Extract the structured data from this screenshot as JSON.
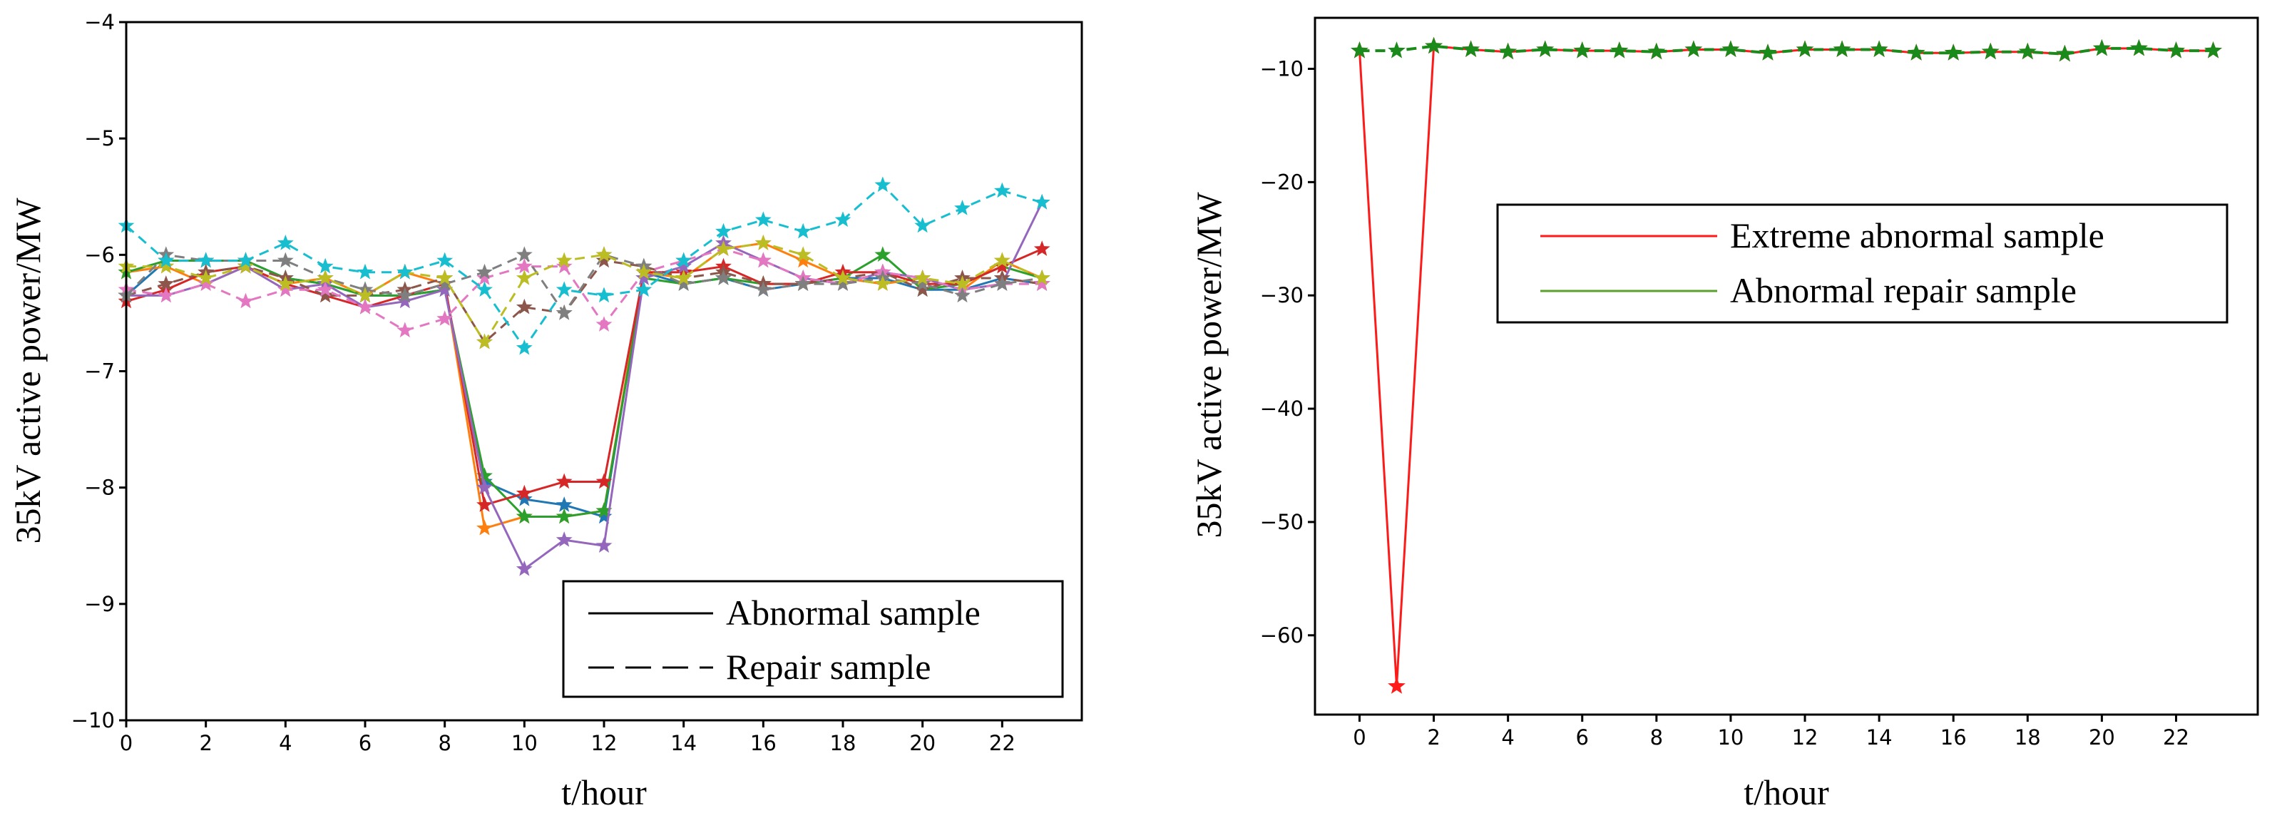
{
  "chart_data": [
    {
      "type": "line",
      "xlabel": "t/hour",
      "ylabel": "35kV active power/MW",
      "xlim": [
        0,
        24
      ],
      "ylim": [
        -10,
        -4
      ],
      "xticks": [
        "0",
        "2",
        "4",
        "6",
        "8",
        "10",
        "12",
        "14",
        "16",
        "18",
        "20",
        "22"
      ],
      "yticks": [
        "−4",
        "−5",
        "−6",
        "−7",
        "−8",
        "−9",
        "−10"
      ],
      "legend": {
        "position": "bottom-right",
        "entries": [
          {
            "label": "Abnormal sample",
            "style": "solid"
          },
          {
            "label": "Repair sample",
            "style": "dashed"
          }
        ]
      },
      "x": [
        0,
        1,
        2,
        3,
        4,
        5,
        6,
        7,
        8,
        9,
        10,
        11,
        12,
        13,
        14,
        15,
        16,
        17,
        18,
        19,
        20,
        21,
        22,
        23
      ],
      "series": [
        {
          "name": "blue",
          "color": "#1f77b4",
          "style": "solid",
          "values": [
            -6.35,
            -6.05,
            -6.05,
            -6.05,
            -6.2,
            -6.25,
            -6.35,
            -6.35,
            -6.3,
            -7.95,
            -8.1,
            -8.15,
            -8.25,
            -6.15,
            -6.25,
            -6.2,
            -6.3,
            -6.25,
            -6.2,
            -6.2,
            -6.3,
            -6.3,
            -6.2,
            -6.25
          ]
        },
        {
          "name": "orange",
          "color": "#ff7f0e",
          "style": "solid",
          "values": [
            -6.15,
            -6.1,
            -6.25,
            -6.1,
            -6.25,
            -6.2,
            -6.35,
            -6.15,
            -6.25,
            -8.35,
            -8.25,
            -8.25,
            -8.2,
            -6.15,
            -6.2,
            -5.95,
            -5.9,
            -6.05,
            -6.2,
            -6.25,
            -6.2,
            -6.3,
            -6.05,
            -6.2
          ]
        },
        {
          "name": "green",
          "color": "#2ca02c",
          "style": "solid",
          "values": [
            -6.15,
            -6.05,
            -6.05,
            -6.05,
            -6.2,
            -6.25,
            -6.35,
            -6.35,
            -6.3,
            -7.9,
            -8.25,
            -8.25,
            -8.2,
            -6.2,
            -6.25,
            -6.2,
            -6.25,
            -6.25,
            -6.2,
            -6.0,
            -6.3,
            -6.25,
            -6.1,
            -6.2
          ]
        },
        {
          "name": "red",
          "color": "#d62728",
          "style": "solid",
          "values": [
            -6.4,
            -6.3,
            -6.15,
            -6.1,
            -6.25,
            -6.35,
            -6.45,
            -6.35,
            -6.25,
            -8.15,
            -8.05,
            -7.95,
            -7.95,
            -6.15,
            -6.15,
            -6.1,
            -6.25,
            -6.25,
            -6.15,
            -6.15,
            -6.25,
            -6.25,
            -6.1,
            -5.95
          ]
        },
        {
          "name": "purple",
          "color": "#9467bd",
          "style": "solid",
          "values": [
            -6.35,
            -6.35,
            -6.25,
            -6.1,
            -6.3,
            -6.25,
            -6.45,
            -6.4,
            -6.3,
            -8.0,
            -8.7,
            -8.45,
            -8.5,
            -6.2,
            -6.1,
            -5.9,
            -6.05,
            -6.2,
            -6.25,
            -6.15,
            -6.2,
            -6.3,
            -6.25,
            -5.55
          ]
        },
        {
          "name": "brown",
          "color": "#8c564b",
          "style": "dashed",
          "values": [
            -6.35,
            -6.25,
            -6.15,
            -6.1,
            -6.2,
            -6.35,
            -6.35,
            -6.3,
            -6.2,
            -6.75,
            -6.45,
            -6.5,
            -6.05,
            -6.1,
            -6.2,
            -6.15,
            -6.25,
            -6.25,
            -6.2,
            -6.15,
            -6.3,
            -6.2,
            -6.2,
            -6.25
          ]
        },
        {
          "name": "pink",
          "color": "#e377c2",
          "style": "dashed",
          "values": [
            -6.3,
            -6.35,
            -6.25,
            -6.4,
            -6.3,
            -6.3,
            -6.45,
            -6.65,
            -6.55,
            -6.2,
            -6.1,
            -6.1,
            -6.6,
            -6.15,
            -6.05,
            -5.95,
            -6.05,
            -6.2,
            -6.25,
            -6.15,
            -6.2,
            -6.3,
            -6.25,
            -6.25
          ]
        },
        {
          "name": "gray",
          "color": "#7f7f7f",
          "style": "dashed",
          "values": [
            -6.35,
            -6.0,
            -6.05,
            -6.05,
            -6.05,
            -6.2,
            -6.3,
            -6.35,
            -6.25,
            -6.15,
            -6.0,
            -6.5,
            -6.0,
            -6.1,
            -6.25,
            -6.2,
            -6.3,
            -6.25,
            -6.25,
            -6.2,
            -6.25,
            -6.35,
            -6.25,
            -6.2
          ]
        },
        {
          "name": "olive",
          "color": "#bcbd22",
          "style": "dashed",
          "values": [
            -6.1,
            -6.1,
            -6.2,
            -6.1,
            -6.25,
            -6.2,
            -6.35,
            -6.15,
            -6.2,
            -6.75,
            -6.2,
            -6.05,
            -6.0,
            -6.15,
            -6.2,
            -5.95,
            -5.9,
            -6.0,
            -6.2,
            -6.25,
            -6.2,
            -6.25,
            -6.05,
            -6.2
          ]
        },
        {
          "name": "cyan",
          "color": "#17becf",
          "style": "dashed",
          "values": [
            -5.75,
            -6.05,
            -6.05,
            -6.05,
            -5.9,
            -6.1,
            -6.15,
            -6.15,
            -6.05,
            -6.3,
            -6.8,
            -6.3,
            -6.35,
            -6.3,
            -6.05,
            -5.8,
            -5.7,
            -5.8,
            -5.7,
            -5.4,
            -5.75,
            -5.6,
            -5.45,
            -5.55
          ]
        }
      ]
    },
    {
      "type": "line",
      "xlabel": "t/hour",
      "ylabel": "35kV active power/MW",
      "xlim": [
        -1.2,
        24.2
      ],
      "ylim": [
        -67,
        -5.5
      ],
      "xticks": [
        "0",
        "2",
        "4",
        "6",
        "8",
        "10",
        "12",
        "14",
        "16",
        "18",
        "20",
        "22"
      ],
      "yticks": [
        "−10",
        "−20",
        "−30",
        "−40",
        "−50",
        "−60"
      ],
      "legend": {
        "position": "upper-right",
        "entries": [
          {
            "label": "Extreme abnormal sample",
            "color": "#ff1a1a"
          },
          {
            "label": "Abnormal repair sample",
            "color": "#5aa02c"
          }
        ]
      },
      "x": [
        0,
        1,
        2,
        3,
        4,
        5,
        6,
        7,
        8,
        9,
        10,
        11,
        12,
        13,
        14,
        15,
        16,
        17,
        18,
        19,
        20,
        21,
        22,
        23
      ],
      "series": [
        {
          "name": "Extreme abnormal sample",
          "color": "#ff1a1a",
          "values": [
            -8.4,
            -64.5,
            -8.0,
            -8.3,
            -8.5,
            -8.3,
            -8.4,
            -8.4,
            -8.5,
            -8.3,
            -8.3,
            -8.6,
            -8.3,
            -8.3,
            -8.3,
            -8.6,
            -8.6,
            -8.5,
            -8.5,
            -8.7,
            -8.2,
            -8.2,
            -8.4,
            -8.4
          ]
        },
        {
          "name": "Abnormal repair sample",
          "color": "#1a8a1a",
          "values": [
            -8.4,
            -8.4,
            -8.0,
            -8.3,
            -8.5,
            -8.3,
            -8.4,
            -8.4,
            -8.5,
            -8.3,
            -8.3,
            -8.6,
            -8.3,
            -8.3,
            -8.3,
            -8.6,
            -8.6,
            -8.5,
            -8.5,
            -8.7,
            -8.2,
            -8.2,
            -8.4,
            -8.4
          ]
        }
      ]
    }
  ]
}
